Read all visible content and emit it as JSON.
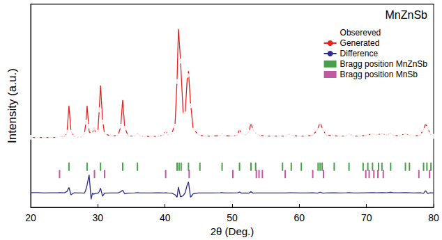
{
  "chart_data": {
    "type": "line",
    "title": "MnZnSb",
    "x_label": "2θ (Deg.)",
    "y_label": "Intensity (a.u.)",
    "xlim": [
      20,
      80
    ],
    "xticks": [
      20,
      30,
      40,
      50,
      60,
      70,
      80
    ],
    "ylim": [
      0,
      100
    ],
    "tick_labels": "x",
    "grid": false,
    "legend": "upper right",
    "x": [
      20,
      21,
      22,
      23,
      24,
      24.3,
      25,
      25.4,
      25.7,
      26.0,
      26.5,
      27,
      27.5,
      28.0,
      28.2,
      28.4,
      28.7,
      29.0,
      29.2,
      29.4,
      29.7,
      30.0,
      30.2,
      30.4,
      30.7,
      31.0,
      32,
      33.0,
      33.4,
      33.7,
      34.0,
      34.5,
      35.5,
      35.9,
      36.3,
      37,
      38,
      39,
      39.8,
      40.1,
      40.4,
      41.0,
      41.5,
      41.8,
      42.0,
      42.3,
      42.7,
      43.0,
      43.3,
      43.5,
      43.8,
      44.2,
      45,
      46,
      47,
      48.2,
      48.5,
      48.8,
      50,
      50.8,
      51.1,
      51.4,
      52,
      52.5,
      52.8,
      53.1,
      53.5,
      54,
      55,
      56,
      57,
      58,
      58.5,
      59,
      60,
      61,
      62,
      62.7,
      63.1,
      63.5,
      64,
      65,
      66,
      67,
      67.4,
      68,
      69,
      70,
      70.9,
      71.5,
      72.3,
      73,
      73.6,
      74,
      75,
      75.8,
      76.5,
      77,
      78,
      78.5,
      78.8,
      79.1,
      79.5,
      80
    ],
    "series": [
      {
        "name": "Obsereved",
        "type": "scatter",
        "marker": "circle",
        "color": "#3a3a3a",
        "values": [
          34.5,
          34.5,
          34.3,
          34.4,
          34.5,
          35.0,
          34.8,
          37.0,
          52.0,
          37.0,
          34.8,
          34.5,
          34.6,
          36.0,
          42.0,
          52.0,
          40.0,
          35.5,
          36.0,
          39.0,
          36.0,
          37.0,
          48.0,
          62.0,
          42.0,
          36.0,
          35.0,
          35.3,
          40.0,
          54.0,
          39.0,
          35.0,
          35.0,
          36.5,
          35.0,
          34.8,
          34.8,
          35.0,
          35.5,
          38.0,
          35.5,
          36.0,
          40.0,
          62.0,
          89.0,
          72.0,
          45.0,
          46.0,
          65.0,
          70.0,
          50.0,
          38.0,
          35.5,
          35.0,
          35.0,
          35.3,
          36.5,
          35.2,
          35.0,
          35.5,
          39.0,
          36.0,
          35.5,
          37.0,
          42.0,
          38.0,
          36.5,
          35.5,
          35.0,
          35.0,
          35.0,
          35.0,
          36.0,
          35.3,
          35.0,
          35.0,
          35.5,
          38.0,
          42.0,
          38.0,
          35.5,
          35.3,
          35.0,
          35.2,
          36.3,
          35.0,
          35.0,
          35.5,
          36.3,
          35.6,
          36.5,
          35.5,
          36.8,
          35.4,
          35.2,
          36.5,
          35.2,
          35.0,
          35.5,
          38.0,
          42.0,
          39.0,
          36.0,
          35.0
        ]
      },
      {
        "name": "Generated",
        "type": "line",
        "line_style": "solid",
        "color": "#e8221c",
        "values": [
          34.4,
          34.4,
          34.4,
          34.4,
          34.5,
          34.9,
          34.8,
          36.5,
          50.0,
          37.5,
          34.8,
          34.6,
          34.7,
          36.2,
          41.0,
          50.0,
          37.5,
          35.8,
          36.2,
          39.5,
          36.3,
          37.3,
          47.5,
          60.0,
          43.0,
          36.2,
          35.1,
          35.4,
          39.5,
          53.0,
          39.5,
          35.2,
          35.1,
          36.4,
          35.1,
          34.9,
          34.9,
          35.0,
          35.6,
          38.0,
          35.6,
          36.2,
          41.0,
          63.0,
          88.0,
          73.0,
          46.5,
          46.0,
          63.0,
          67.0,
          51.5,
          38.5,
          35.6,
          35.1,
          35.1,
          35.3,
          36.4,
          35.3,
          35.1,
          35.5,
          38.7,
          36.2,
          35.6,
          37.2,
          41.5,
          38.2,
          36.6,
          35.6,
          35.1,
          35.1,
          35.1,
          35.1,
          36.0,
          35.3,
          35.1,
          35.1,
          35.5,
          38.2,
          41.8,
          38.2,
          35.6,
          35.3,
          35.1,
          35.2,
          36.2,
          35.1,
          35.1,
          35.5,
          36.2,
          35.6,
          36.4,
          35.5,
          36.6,
          35.4,
          35.2,
          36.4,
          35.2,
          35.1,
          35.5,
          38.3,
          41.0,
          39.2,
          36.0,
          35.1
        ]
      },
      {
        "name": "Difference",
        "type": "line",
        "line_style": "solid",
        "color": "#2b2b8c",
        "values": [
          7.3,
          7.3,
          7.1,
          7.2,
          7.2,
          7.3,
          7.2,
          7.8,
          9.8,
          6.2,
          7.2,
          7.1,
          7.1,
          7.0,
          8.5,
          11.0,
          16.0,
          4.0,
          7.0,
          6.5,
          6.9,
          6.9,
          7.7,
          9.5,
          5.5,
          7.0,
          7.1,
          7.1,
          7.7,
          8.4,
          6.7,
          7.0,
          7.1,
          7.3,
          7.1,
          7.1,
          7.1,
          7.2,
          7.1,
          7.2,
          7.1,
          7.0,
          6.2,
          5.0,
          10.0,
          5.2,
          5.7,
          7.2,
          11.0,
          12.5,
          5.0,
          6.7,
          7.1,
          7.1,
          7.1,
          7.2,
          7.3,
          7.1,
          7.1,
          7.2,
          7.5,
          7.0,
          7.1,
          7.0,
          7.7,
          7.0,
          7.1,
          7.1,
          7.1,
          7.1,
          7.1,
          7.1,
          7.2,
          7.2,
          7.1,
          7.1,
          7.2,
          7.0,
          7.4,
          7.0,
          7.1,
          7.2,
          7.1,
          7.2,
          7.3,
          7.1,
          7.1,
          7.2,
          7.3,
          7.2,
          7.3,
          7.2,
          7.4,
          7.2,
          7.2,
          7.3,
          7.2,
          7.1,
          7.2,
          6.9,
          8.2,
          6.8,
          7.2,
          7.1
        ]
      },
      {
        "name": "Bragg position MnZnSb",
        "type": "scatter",
        "marker": "bar",
        "color": "#1a8a1a",
        "y": 20,
        "x": [
          25.7,
          28.4,
          30.4,
          33.7,
          35.9,
          41.8,
          42.1,
          42.4,
          43.5,
          45.2,
          48.5,
          51.1,
          52.8,
          53.5,
          57.5,
          58.8,
          60.3,
          62.8,
          63.1,
          63.4,
          65.2,
          67.4,
          69.5,
          70.2,
          70.9,
          71.8,
          72.3,
          73.6,
          75.8,
          76.4,
          78.5,
          79.0,
          79.6
        ]
      },
      {
        "name": "Bragg position MnSb",
        "type": "scatter",
        "marker": "bar",
        "color": "#b0308a",
        "y": 16.4,
        "x": [
          24.3,
          29.5,
          31.0,
          40.1,
          43.6,
          50.1,
          53.6,
          54.0,
          54.5,
          57.9,
          62.0,
          63.6,
          69.9,
          70.4,
          71.1,
          71.7,
          72.5,
          77.8,
          79.4
        ]
      }
    ]
  }
}
